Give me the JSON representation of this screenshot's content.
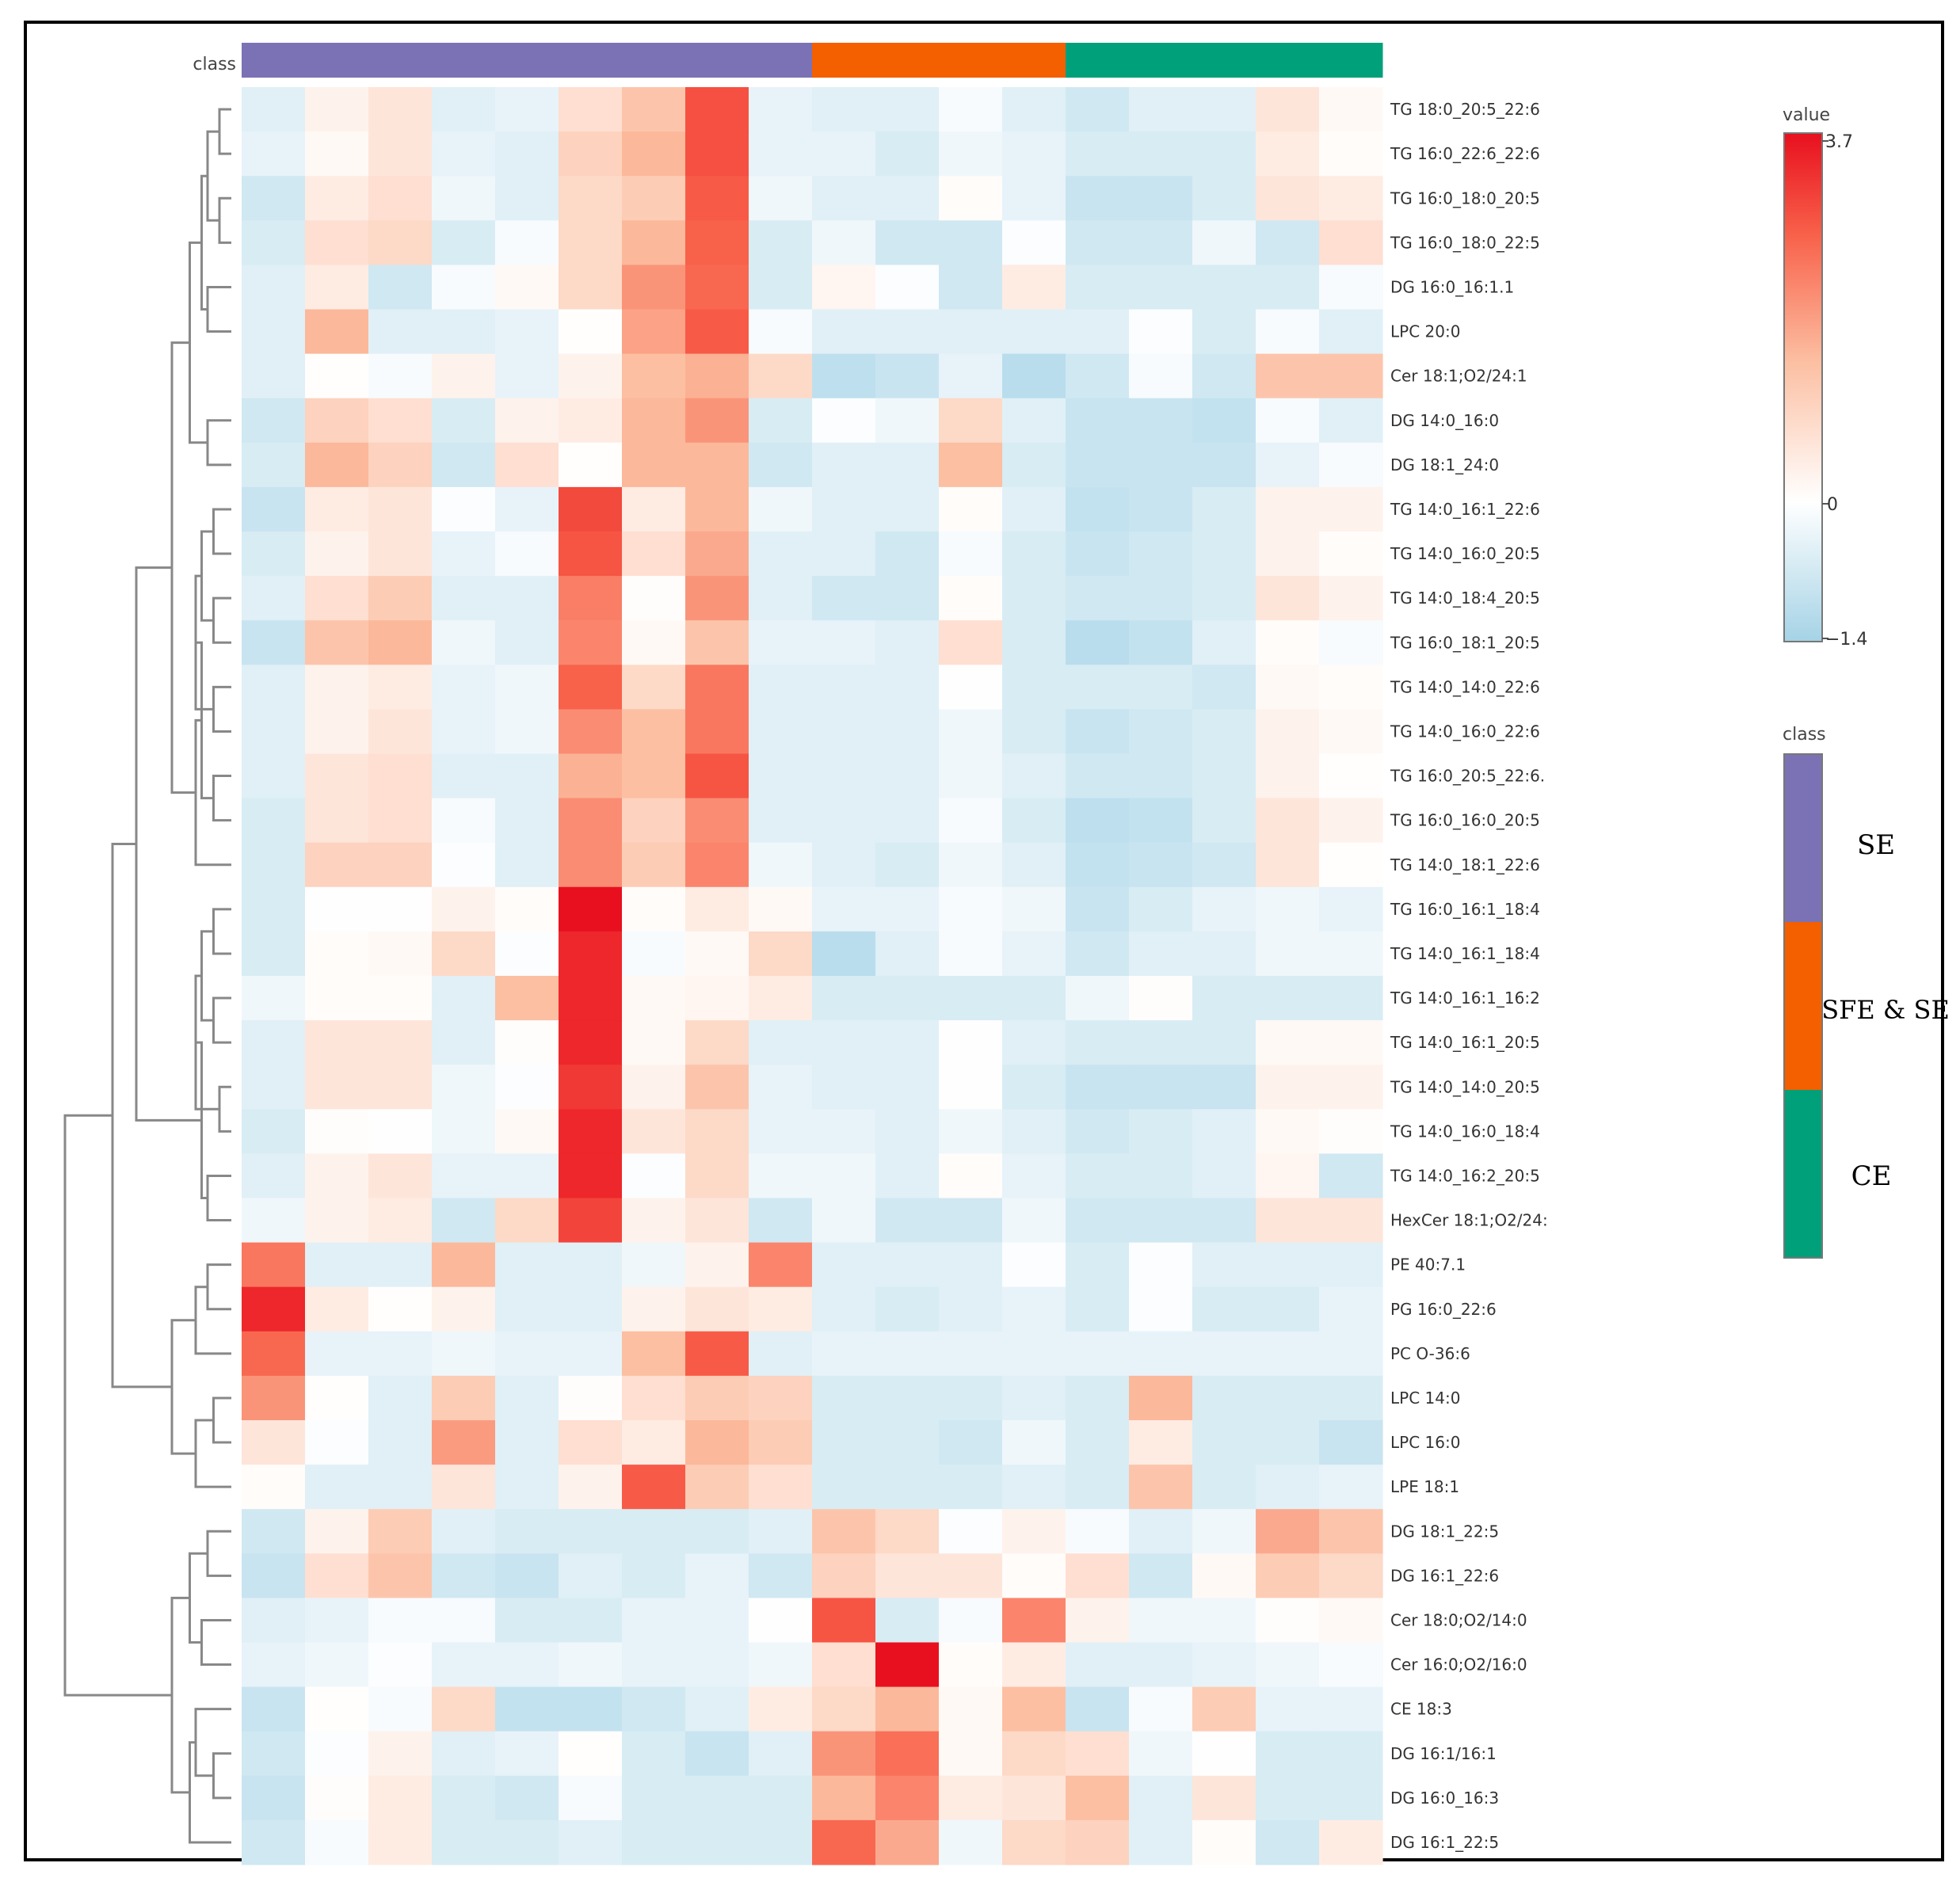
{
  "chart_data": {
    "type": "heatmap",
    "class_track_label": "class",
    "value_legend": {
      "title": "value",
      "max_label": "3.7",
      "mid_label": "0",
      "min_label": "−1.4",
      "min": -1.4,
      "max": 3.7
    },
    "class_legend": {
      "title": "class",
      "entries": [
        {
          "label": "SE",
          "color": "#7b72b6"
        },
        {
          "label": "SFE & SE",
          "color": "#f45f00"
        },
        {
          "label": "CE",
          "color": "#00a07a"
        }
      ]
    },
    "column_classes": [
      "SE",
      "SE",
      "SE",
      "SE",
      "SE",
      "SE",
      "SE",
      "SE",
      "SE",
      "SFE & SE",
      "SFE & SE",
      "SFE & SE",
      "SFE & SE",
      "CE",
      "CE",
      "CE",
      "CE",
      "CE"
    ],
    "rows": [
      "TG 18:0_20:5_22:6",
      "TG 16:0_22:6_22:6",
      "TG 16:0_18:0_20:5",
      "TG 16:0_18:0_22:5",
      "DG 16:0_16:1.1",
      "LPC 20:0",
      "Cer 18:1;O2/24:1",
      "DG 14:0_16:0",
      "DG 18:1_24:0",
      "TG 14:0_16:1_22:6",
      "TG 14:0_16:0_20:5",
      "TG 14:0_18:4_20:5",
      "TG 16:0_18:1_20:5",
      "TG 14:0_14:0_22:6",
      "TG 14:0_16:0_22:6",
      "TG 16:0_20:5_22:6.",
      "TG 16:0_16:0_20:5",
      "TG 14:0_18:1_22:6",
      "TG 16:0_16:1_18:4",
      "TG 14:0_16:1_18:4",
      "TG 14:0_16:1_16:2",
      "TG 14:0_16:1_20:5",
      "TG 14:0_14:0_20:5",
      "TG 14:0_16:0_18:4",
      "TG 14:0_16:2_20:5",
      "HexCer 18:1;O2/24:",
      "PE 40:7.1",
      "PG 16:0_22:6",
      "PC O-36:6",
      "LPC 14:0",
      "LPC 16:0",
      "LPE 18:1",
      "DG 18:1_22:5",
      "DG 16:1_22:6",
      "Cer 18:0;O2/14:0",
      "Cer 16:0;O2/16:0",
      "CE 18:3",
      "DG 16:1/16:1",
      "DG 16:0_16:3",
      "DG 16:1_22:5"
    ],
    "values": [
      [
        -0.4,
        0.2,
        0.4,
        -0.4,
        -0.3,
        0.5,
        0.9,
        2.6,
        -0.3,
        -0.4,
        -0.4,
        -0.1,
        -0.4,
        -0.6,
        -0.4,
        -0.4,
        0.4,
        0.1
      ],
      [
        -0.3,
        0.1,
        0.4,
        -0.3,
        -0.4,
        0.7,
        1.1,
        2.6,
        -0.3,
        -0.3,
        -0.5,
        -0.2,
        -0.3,
        -0.5,
        -0.5,
        -0.5,
        0.3,
        0.05
      ],
      [
        -0.6,
        0.3,
        0.5,
        -0.2,
        -0.4,
        0.6,
        0.8,
        2.4,
        -0.2,
        -0.4,
        -0.4,
        0.05,
        -0.3,
        -0.7,
        -0.7,
        -0.5,
        0.4,
        0.3
      ],
      [
        -0.5,
        0.5,
        0.6,
        -0.5,
        -0.1,
        0.6,
        1.1,
        2.3,
        -0.5,
        -0.2,
        -0.6,
        -0.6,
        -0.05,
        -0.6,
        -0.6,
        -0.2,
        -0.6,
        0.5
      ],
      [
        -0.4,
        0.3,
        -0.6,
        -0.1,
        0.1,
        0.6,
        1.6,
        2.2,
        -0.5,
        0.15,
        -0.05,
        -0.6,
        0.3,
        -0.5,
        -0.5,
        -0.5,
        -0.5,
        -0.1
      ],
      [
        -0.4,
        1.1,
        -0.4,
        -0.4,
        -0.3,
        0.02,
        1.4,
        2.4,
        -0.1,
        -0.4,
        -0.4,
        -0.4,
        -0.4,
        -0.4,
        -0.05,
        -0.5,
        -0.1,
        -0.4
      ],
      [
        -0.4,
        0.02,
        -0.1,
        0.2,
        -0.3,
        0.2,
        1.0,
        1.2,
        0.6,
        -0.9,
        -0.7,
        -0.3,
        -1.0,
        -0.6,
        -0.1,
        -0.6,
        0.9,
        0.9
      ],
      [
        -0.6,
        0.7,
        0.5,
        -0.5,
        0.2,
        0.3,
        1.1,
        1.6,
        -0.5,
        -0.05,
        -0.2,
        0.6,
        -0.4,
        -0.7,
        -0.7,
        -0.8,
        -0.1,
        -0.4
      ],
      [
        -0.5,
        1.1,
        0.7,
        -0.6,
        0.5,
        0.02,
        1.1,
        1.1,
        -0.6,
        -0.4,
        -0.4,
        1.0,
        -0.5,
        -0.7,
        -0.7,
        -0.7,
        -0.3,
        -0.1
      ],
      [
        -0.7,
        0.3,
        0.4,
        -0.05,
        -0.3,
        2.7,
        0.3,
        1.1,
        -0.2,
        -0.4,
        -0.4,
        0.05,
        -0.4,
        -0.8,
        -0.7,
        -0.5,
        0.2,
        0.2
      ],
      [
        -0.5,
        0.2,
        0.4,
        -0.3,
        -0.1,
        2.5,
        0.5,
        1.3,
        -0.4,
        -0.4,
        -0.6,
        -0.1,
        -0.5,
        -0.7,
        -0.6,
        -0.5,
        0.2,
        0.05
      ],
      [
        -0.4,
        0.5,
        0.8,
        -0.4,
        -0.4,
        1.9,
        0.03,
        1.6,
        -0.4,
        -0.6,
        -0.6,
        0.05,
        -0.5,
        -0.6,
        -0.6,
        -0.5,
        0.4,
        0.2
      ],
      [
        -0.7,
        0.9,
        1.1,
        -0.2,
        -0.4,
        1.8,
        0.1,
        0.9,
        -0.3,
        -0.3,
        -0.4,
        0.5,
        -0.5,
        -1.0,
        -0.8,
        -0.4,
        0.05,
        -0.1
      ],
      [
        -0.4,
        0.2,
        0.3,
        -0.3,
        -0.2,
        2.3,
        0.6,
        2.0,
        -0.4,
        -0.4,
        -0.4,
        0.01,
        -0.5,
        -0.5,
        -0.5,
        -0.6,
        0.1,
        0.05
      ],
      [
        -0.4,
        0.2,
        0.4,
        -0.3,
        -0.2,
        1.7,
        1.0,
        2.0,
        -0.4,
        -0.4,
        -0.4,
        -0.2,
        -0.5,
        -0.7,
        -0.6,
        -0.5,
        0.2,
        0.1
      ],
      [
        -0.4,
        0.4,
        0.5,
        -0.4,
        -0.4,
        1.2,
        1.0,
        2.5,
        -0.4,
        -0.4,
        -0.4,
        -0.2,
        -0.4,
        -0.6,
        -0.6,
        -0.5,
        0.2,
        0.02
      ],
      [
        -0.5,
        0.4,
        0.5,
        -0.1,
        -0.4,
        1.7,
        0.7,
        1.7,
        -0.4,
        -0.4,
        -0.4,
        -0.1,
        -0.5,
        -0.9,
        -0.8,
        -0.5,
        0.4,
        0.2
      ],
      [
        -0.5,
        0.7,
        0.7,
        -0.05,
        -0.4,
        1.7,
        0.8,
        1.8,
        -0.2,
        -0.4,
        -0.5,
        -0.2,
        -0.4,
        -0.8,
        -0.7,
        -0.6,
        0.4,
        0.02
      ],
      [
        -0.5,
        0.01,
        0.01,
        0.2,
        0.05,
        3.7,
        0.05,
        0.3,
        0.1,
        -0.3,
        -0.3,
        -0.1,
        -0.2,
        -0.7,
        -0.5,
        -0.3,
        -0.2,
        -0.3
      ],
      [
        -0.5,
        0.05,
        0.1,
        0.6,
        -0.05,
        3.3,
        -0.1,
        0.1,
        0.6,
        -1.0,
        -0.4,
        -0.1,
        -0.3,
        -0.6,
        -0.4,
        -0.4,
        -0.2,
        -0.2
      ],
      [
        -0.2,
        0.05,
        0.05,
        -0.4,
        1.0,
        3.3,
        0.1,
        0.15,
        0.3,
        -0.5,
        -0.5,
        -0.5,
        -0.5,
        -0.2,
        0.03,
        -0.5,
        -0.5,
        -0.5
      ],
      [
        -0.4,
        0.4,
        0.4,
        -0.4,
        0.03,
        3.3,
        0.1,
        0.6,
        -0.4,
        -0.4,
        -0.4,
        0.01,
        -0.4,
        -0.5,
        -0.5,
        -0.5,
        0.1,
        0.1
      ],
      [
        -0.4,
        0.4,
        0.4,
        -0.2,
        -0.05,
        3.0,
        0.2,
        0.9,
        -0.3,
        -0.4,
        -0.4,
        0.01,
        -0.5,
        -0.7,
        -0.7,
        -0.7,
        0.2,
        0.2
      ],
      [
        -0.5,
        0.03,
        0.01,
        -0.2,
        0.1,
        3.3,
        0.4,
        0.6,
        -0.3,
        -0.3,
        -0.4,
        -0.2,
        -0.4,
        -0.6,
        -0.5,
        -0.4,
        0.1,
        0.03
      ],
      [
        -0.4,
        0.2,
        0.4,
        -0.3,
        -0.3,
        3.3,
        -0.05,
        0.6,
        -0.2,
        -0.2,
        -0.4,
        0.05,
        -0.3,
        -0.5,
        -0.5,
        -0.4,
        0.15,
        -0.6
      ],
      [
        -0.2,
        0.2,
        0.3,
        -0.6,
        0.6,
        2.8,
        0.2,
        0.4,
        -0.6,
        -0.2,
        -0.6,
        -0.6,
        -0.2,
        -0.6,
        -0.6,
        -0.6,
        0.4,
        0.4
      ],
      [
        2.0,
        -0.4,
        -0.4,
        1.1,
        -0.4,
        -0.4,
        -0.2,
        0.2,
        1.8,
        -0.4,
        -0.4,
        -0.4,
        -0.05,
        -0.5,
        -0.05,
        -0.4,
        -0.4,
        -0.4
      ],
      [
        3.3,
        0.3,
        0.02,
        0.2,
        -0.4,
        -0.4,
        0.2,
        0.4,
        0.3,
        -0.4,
        -0.5,
        -0.4,
        -0.3,
        -0.5,
        -0.05,
        -0.5,
        -0.5,
        -0.3
      ],
      [
        2.2,
        -0.3,
        -0.3,
        -0.2,
        -0.3,
        -0.3,
        1.0,
        2.4,
        -0.4,
        -0.3,
        -0.3,
        -0.3,
        -0.3,
        -0.3,
        -0.3,
        -0.3,
        -0.3,
        -0.3
      ],
      [
        1.6,
        0.02,
        -0.4,
        0.8,
        -0.4,
        0.03,
        0.5,
        0.8,
        0.7,
        -0.5,
        -0.5,
        -0.5,
        -0.4,
        -0.5,
        1.1,
        -0.5,
        -0.5,
        -0.5
      ],
      [
        0.4,
        -0.05,
        -0.4,
        1.5,
        -0.4,
        0.5,
        0.3,
        1.1,
        0.8,
        -0.5,
        -0.5,
        -0.6,
        -0.2,
        -0.5,
        0.3,
        -0.5,
        -0.5,
        -0.7
      ],
      [
        0.05,
        -0.4,
        -0.4,
        0.4,
        -0.4,
        0.2,
        2.4,
        0.8,
        0.5,
        -0.5,
        -0.5,
        -0.5,
        -0.4,
        -0.5,
        0.9,
        -0.5,
        -0.4,
        -0.3
      ],
      [
        -0.6,
        0.2,
        0.8,
        -0.4,
        -0.5,
        -0.5,
        -0.5,
        -0.5,
        -0.4,
        0.9,
        0.6,
        -0.05,
        0.2,
        -0.1,
        -0.4,
        -0.2,
        1.3,
        0.9
      ],
      [
        -0.7,
        0.5,
        0.9,
        -0.6,
        -0.7,
        -0.4,
        -0.5,
        -0.3,
        -0.6,
        0.7,
        0.4,
        0.4,
        0.05,
        0.5,
        -0.6,
        0.1,
        0.8,
        0.6
      ],
      [
        -0.4,
        -0.3,
        -0.1,
        -0.1,
        -0.5,
        -0.5,
        -0.3,
        -0.3,
        0.01,
        2.5,
        -0.5,
        -0.1,
        1.8,
        0.2,
        -0.2,
        -0.2,
        0.03,
        0.1
      ],
      [
        -0.3,
        -0.2,
        -0.05,
        -0.3,
        -0.3,
        -0.2,
        -0.3,
        -0.3,
        -0.2,
        0.5,
        3.7,
        0.05,
        0.3,
        -0.4,
        -0.4,
        -0.3,
        -0.2,
        -0.1
      ],
      [
        -0.7,
        0.02,
        -0.1,
        0.6,
        -0.8,
        -0.8,
        -0.6,
        -0.4,
        0.3,
        0.6,
        1.1,
        0.1,
        1.0,
        -0.7,
        -0.1,
        0.8,
        -0.3,
        -0.3
      ],
      [
        -0.6,
        -0.05,
        0.2,
        -0.4,
        -0.3,
        0.02,
        -0.5,
        -0.7,
        -0.4,
        1.6,
        2.1,
        0.1,
        0.6,
        0.5,
        -0.2,
        0.01,
        -0.5,
        -0.5
      ],
      [
        -0.7,
        0.03,
        0.3,
        -0.5,
        -0.6,
        -0.1,
        -0.5,
        -0.5,
        -0.5,
        1.1,
        1.8,
        0.3,
        0.4,
        1.0,
        -0.4,
        0.4,
        -0.5,
        -0.5
      ],
      [
        -0.6,
        -0.1,
        0.3,
        -0.5,
        -0.5,
        -0.4,
        -0.5,
        -0.5,
        -0.5,
        2.2,
        1.3,
        -0.2,
        0.6,
        0.7,
        -0.4,
        0.05,
        -0.6,
        0.3
      ]
    ],
    "row_dendrogram": {
      "pairs": [
        [
          0,
          1
        ],
        [
          2,
          3
        ],
        [
          "A",
          "B"
        ],
        [
          4,
          5
        ],
        [
          "C",
          "D"
        ],
        [
          7,
          8
        ],
        [
          "E",
          "F"
        ],
        [
          9,
          10
        ],
        [
          11,
          12
        ],
        [
          "H",
          "I"
        ],
        [
          13,
          14
        ],
        [
          "J",
          "K"
        ],
        [
          15,
          16
        ],
        [
          "L",
          "M"
        ],
        [
          17,
          "N"
        ],
        [
          "G",
          "O"
        ],
        [
          18,
          19
        ],
        [
          20,
          21
        ],
        [
          "Q",
          "R"
        ],
        [
          22,
          23
        ],
        [
          "S",
          "T"
        ],
        [
          24,
          25
        ],
        [
          "U",
          "V"
        ],
        [
          "P",
          "W"
        ],
        [
          26,
          27
        ],
        [
          "Y",
          28
        ],
        [
          29,
          30
        ],
        [
          "AA",
          31
        ],
        [
          "Z",
          "AB"
        ],
        [
          "X",
          "AC"
        ],
        [
          32,
          33
        ],
        [
          34,
          35
        ],
        [
          "AE",
          "AF"
        ],
        [
          37,
          38
        ],
        [
          36,
          "AH"
        ],
        [
          "AI",
          39
        ],
        [
          "AG",
          "AJ"
        ],
        [
          "AD",
          "AK"
        ]
      ],
      "heights": [
        0.02,
        0.02,
        0.04,
        0.04,
        0.05,
        0.04,
        0.07,
        0.03,
        0.03,
        0.05,
        0.03,
        0.06,
        0.03,
        0.05,
        0.06,
        0.1,
        0.03,
        0.03,
        0.05,
        0.02,
        0.06,
        0.04,
        0.05,
        0.16,
        0.04,
        0.06,
        0.03,
        0.06,
        0.1,
        0.2,
        0.04,
        0.05,
        0.07,
        0.03,
        0.06,
        0.07,
        0.1,
        0.28
      ]
    }
  }
}
